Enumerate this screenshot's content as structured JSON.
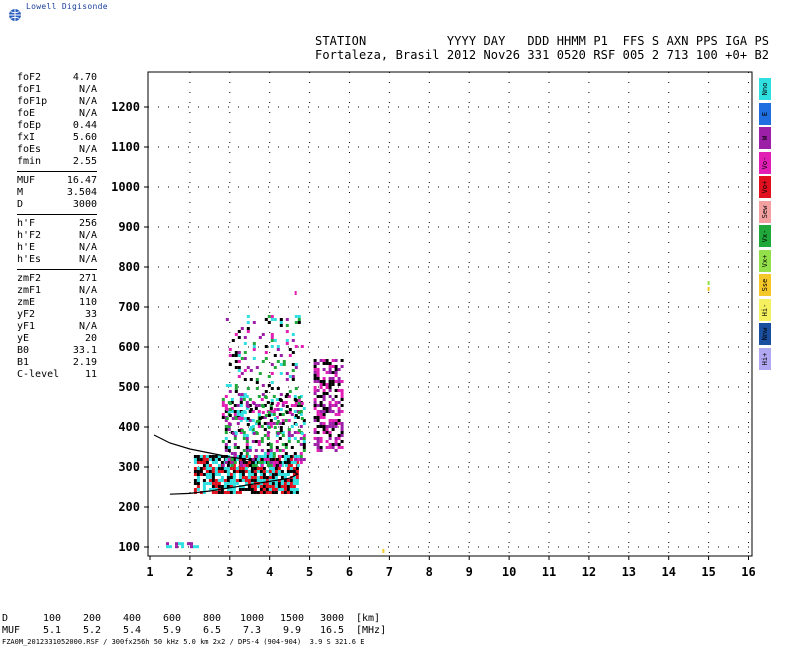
{
  "brand": {
    "name": "Lowell Digisonde"
  },
  "header": {
    "labels": "STATION           YYYY DAY   DDD HHMM P1  FFS S AXN PPS IGA PS",
    "values": "Fortaleza, Brasil 2012 Nov26 331 0520 RSF 005 2 713 100 +0+ B2"
  },
  "params": {
    "group1": [
      {
        "label": "foF2",
        "value": "4.70"
      },
      {
        "label": "foF1",
        "value": "N/A"
      },
      {
        "label": "foF1p",
        "value": "N/A"
      },
      {
        "label": "foE",
        "value": "N/A"
      },
      {
        "label": "foEp",
        "value": "0.44"
      },
      {
        "label": "fxI",
        "value": "5.60"
      },
      {
        "label": "foEs",
        "value": "N/A"
      },
      {
        "label": "fmin",
        "value": "2.55"
      }
    ],
    "group2": [
      {
        "label": "MUF",
        "value": "16.47"
      },
      {
        "label": "M",
        "value": "3.504"
      },
      {
        "label": "D",
        "value": "3000"
      }
    ],
    "group3": [
      {
        "label": "h'F",
        "value": "256"
      },
      {
        "label": "h'F2",
        "value": "N/A"
      },
      {
        "label": "h'E",
        "value": "N/A"
      },
      {
        "label": "h'Es",
        "value": "N/A"
      }
    ],
    "group4": [
      {
        "label": "zmF2",
        "value": "271"
      },
      {
        "label": "zmF1",
        "value": "N/A"
      },
      {
        "label": "zmE",
        "value": "110"
      },
      {
        "label": "yF2",
        "value": "33"
      },
      {
        "label": "yF1",
        "value": "N/A"
      },
      {
        "label": "yE",
        "value": "20"
      },
      {
        "label": "B0",
        "value": "33.1"
      },
      {
        "label": "B1",
        "value": "2.19"
      },
      {
        "label": "C-level",
        "value": "11"
      }
    ]
  },
  "legend": [
    {
      "label": "Nno",
      "color": "#30e0e0"
    },
    {
      "label": "E",
      "color": "#1f6fe0"
    },
    {
      "label": "W",
      "color": "#9c1fa8"
    },
    {
      "label": "Vo-",
      "color": "#e21fb5"
    },
    {
      "label": "Vo+",
      "color": "#e0101e"
    },
    {
      "label": "Sew",
      "color": "#f3a0a0"
    },
    {
      "label": "Vx-",
      "color": "#21a83a"
    },
    {
      "label": "Vx+",
      "color": "#93e04a"
    },
    {
      "label": "Sse",
      "color": "#f4c828"
    },
    {
      "label": "Hi-",
      "color": "#f5f060"
    },
    {
      "label": "Nnw",
      "color": "#1a4fa0"
    },
    {
      "label": "Hi+",
      "color": "#b0a8f0"
    }
  ],
  "muf_table": {
    "d_label": "D",
    "d_values": [
      "100",
      "200",
      "400",
      "600",
      "800",
      "1000",
      "1500",
      "3000"
    ],
    "d_unit": "[km]",
    "m_label": "MUF",
    "m_values": [
      "5.1",
      "5.2",
      "5.4",
      "5.9",
      "6.5",
      "7.3",
      "9.9",
      "16.5"
    ],
    "m_unit": "[MHz]"
  },
  "footer": "FZA0M_2012331052000.RSF / 300fx256h 50 kHz 5.0 km 2x2 / DPS-4 (904-904)  3.9 S 321.6 E",
  "chart_data": {
    "type": "scatter",
    "title": "",
    "xlabel": "",
    "ylabel": "",
    "xlim": [
      1,
      16
    ],
    "ylim": [
      75,
      1290
    ],
    "x_ticks": [
      1,
      2,
      3,
      4,
      5,
      6,
      7,
      8,
      9,
      10,
      11,
      12,
      13,
      14,
      15,
      16
    ],
    "y_ticks": [
      100,
      200,
      300,
      400,
      500,
      600,
      700,
      800,
      900,
      1000,
      1100,
      1200
    ],
    "grid": true,
    "clusters": [
      {
        "name": "E-layer echoes",
        "x": [
          1.4,
          2.2
        ],
        "y": [
          100,
          112
        ],
        "colors": [
          "#30e0e0",
          "#9c1fa8"
        ],
        "density": 0.7
      },
      {
        "name": "F-trace lower",
        "x": [
          2.1,
          4.7
        ],
        "y": [
          235,
          330
        ],
        "colors": [
          "#e0101e",
          "#000000",
          "#30e0e0"
        ],
        "density": 0.85
      },
      {
        "name": "F-trace upper",
        "x": [
          2.8,
          4.9
        ],
        "y": [
          300,
          480
        ],
        "colors": [
          "#e21fb5",
          "#21a83a",
          "#30e0e0",
          "#000000",
          "#9c1fa8"
        ],
        "density": 0.45
      },
      {
        "name": "Spread F",
        "x": [
          2.9,
          4.8
        ],
        "y": [
          380,
          680
        ],
        "colors": [
          "#000000",
          "#e21fb5",
          "#21a83a",
          "#30e0e0",
          "#9c1fa8"
        ],
        "density": 0.18
      },
      {
        "name": "High-frequency block",
        "x": [
          5.1,
          5.8
        ],
        "y": [
          340,
          570
        ],
        "colors": [
          "#000000",
          "#9c1fa8",
          "#e21fb5"
        ],
        "density": 0.55
      }
    ],
    "isolated_points": [
      {
        "x": 15.0,
        "y": 745,
        "color": "#f4c828"
      },
      {
        "x": 15.0,
        "y": 760,
        "color": "#93e04a"
      },
      {
        "x": 6.85,
        "y": 90,
        "color": "#f4c828"
      },
      {
        "x": 4.65,
        "y": 735,
        "color": "#e21fb5"
      }
    ],
    "profile_curve": {
      "x": [
        1.1,
        1.5,
        2.0,
        2.5,
        3.0,
        3.5
      ],
      "y": [
        380,
        360,
        345,
        335,
        325,
        318
      ],
      "color": "#000000"
    },
    "lower_curve": {
      "x": [
        1.5,
        2.0,
        2.5,
        3.0,
        3.5,
        4.0,
        4.5,
        4.7,
        4.55
      ],
      "y": [
        232,
        234,
        240,
        248,
        256,
        264,
        272,
        282,
        292
      ],
      "color": "#000000"
    }
  }
}
